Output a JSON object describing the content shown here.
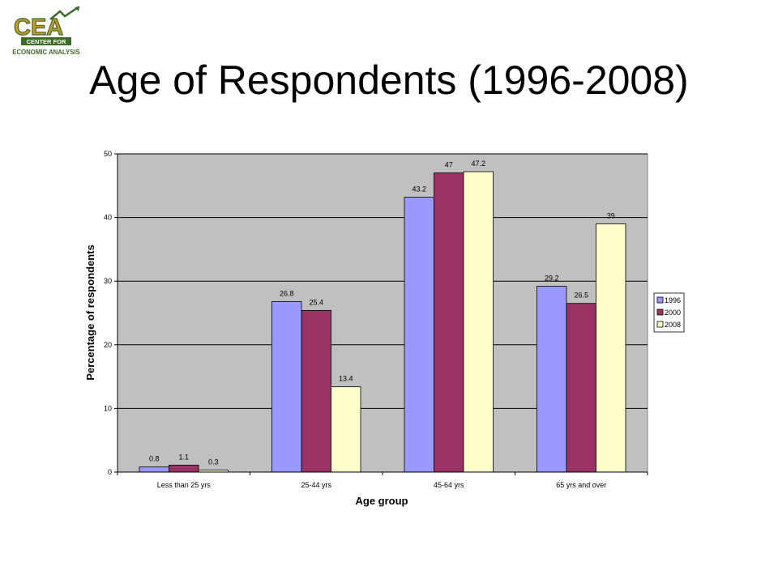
{
  "logo": {
    "letters": "CEA",
    "line1": "CENTER FOR",
    "line2": "ECONOMIC ANALYSIS",
    "colors": {
      "green": "#3f6b2a",
      "gold": "#c49a2c"
    }
  },
  "title": "Age of Respondents  (1996-2008)",
  "chart_data": {
    "type": "bar",
    "title": "",
    "xlabel": "Age group",
    "ylabel": "Percentage of respondents",
    "ylim": [
      0,
      50
    ],
    "yticks": [
      0,
      10,
      20,
      30,
      40,
      50
    ],
    "grid": true,
    "legend": "right",
    "categories": [
      "Less than 25 yrs",
      "25-44 yrs",
      "45-64 yrs",
      "65 yrs and over"
    ],
    "series": [
      {
        "name": "1996",
        "values": [
          0.8,
          26.8,
          43.2,
          29.2
        ],
        "labels": [
          "0.8",
          "26.8",
          "43.2",
          "29.2"
        ],
        "color": "#9999ff"
      },
      {
        "name": "2000",
        "values": [
          1.1,
          25.4,
          47,
          26.5
        ],
        "labels": [
          "1.1",
          "25.4",
          "47",
          "26.5"
        ],
        "color": "#993366"
      },
      {
        "name": "2008",
        "values": [
          0.3,
          13.4,
          47.2,
          39
        ],
        "labels": [
          "0.3",
          "13.4",
          "47.2",
          "39"
        ],
        "color": "#ffffcc"
      }
    ],
    "plot_bg": "#c0c0c0"
  }
}
